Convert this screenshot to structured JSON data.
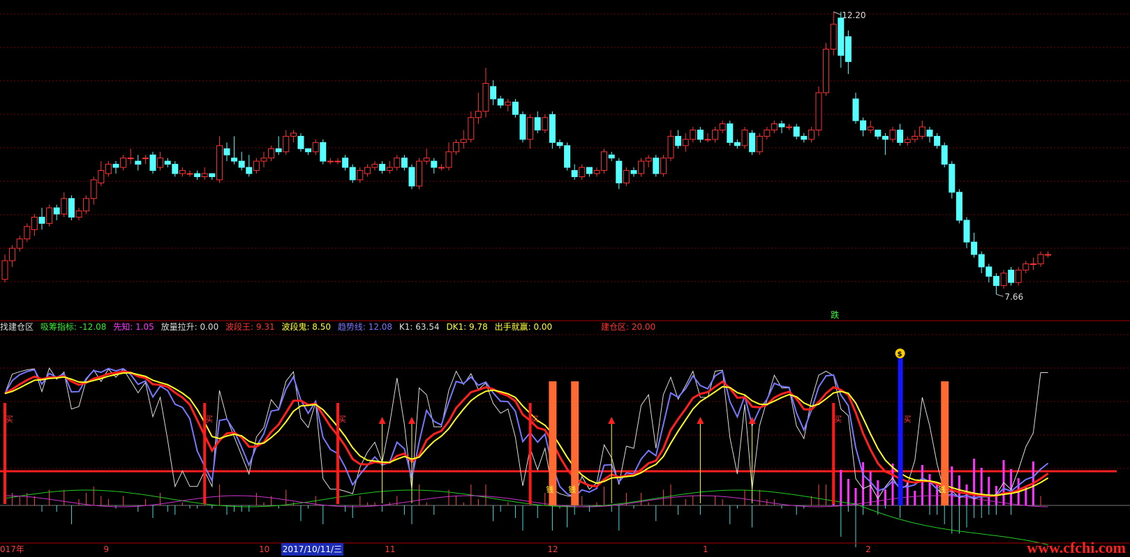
{
  "colors": {
    "background": "#000000",
    "up": "#ff3333",
    "down": "#55ffff",
    "grid": "#7a0000",
    "divider": "#aa0000"
  },
  "price_panel": {
    "high_label": "12.20",
    "low_label": "7.66",
    "signal_label": "跌",
    "candles": [
      [
        7.9,
        8.2,
        7.85,
        8.3
      ],
      [
        8.2,
        8.4,
        8.1,
        8.45
      ],
      [
        8.4,
        8.55,
        8.35,
        8.6
      ],
      [
        8.55,
        8.75,
        8.5,
        8.8
      ],
      [
        8.7,
        8.9,
        8.6,
        8.95
      ],
      [
        8.9,
        8.8,
        8.7,
        9.05
      ],
      [
        8.8,
        9.05,
        8.75,
        9.1
      ],
      [
        9.05,
        8.95,
        8.85,
        9.1
      ],
      [
        8.95,
        9.2,
        8.9,
        9.3
      ],
      [
        9.2,
        8.9,
        8.85,
        9.25
      ],
      [
        8.9,
        9.0,
        8.85,
        9.05
      ],
      [
        9.0,
        9.2,
        8.95,
        9.25
      ],
      [
        9.2,
        9.5,
        9.1,
        9.55
      ],
      [
        9.45,
        9.65,
        9.4,
        9.8
      ],
      [
        9.6,
        9.75,
        9.55,
        9.8
      ],
      [
        9.75,
        9.7,
        9.6,
        9.8
      ],
      [
        9.7,
        9.85,
        9.65,
        9.9
      ],
      [
        9.85,
        9.85,
        9.75,
        10.0
      ],
      [
        9.8,
        9.75,
        9.65,
        9.9
      ],
      [
        9.85,
        9.85,
        9.75,
        9.9
      ],
      [
        9.9,
        9.65,
        9.6,
        9.95
      ],
      [
        9.7,
        9.85,
        9.65,
        9.95
      ],
      [
        9.8,
        9.75,
        9.7,
        9.85
      ],
      [
        9.75,
        9.6,
        9.55,
        9.8
      ],
      [
        9.6,
        9.65,
        9.55,
        9.7
      ],
      [
        9.6,
        9.6,
        9.55,
        9.65
      ],
      [
        9.6,
        9.55,
        9.5,
        9.65
      ],
      [
        9.55,
        9.6,
        9.5,
        9.7
      ],
      [
        9.6,
        9.55,
        9.5,
        9.6
      ],
      [
        9.5,
        10.05,
        9.45,
        10.2
      ],
      [
        10.0,
        9.9,
        9.8,
        10.1
      ],
      [
        9.85,
        9.8,
        9.75,
        10.2
      ],
      [
        9.8,
        9.7,
        9.65,
        9.95
      ],
      [
        9.7,
        9.6,
        9.55,
        9.9
      ],
      [
        9.65,
        9.8,
        9.6,
        9.85
      ],
      [
        9.8,
        9.85,
        9.7,
        9.95
      ],
      [
        9.85,
        10.0,
        9.8,
        10.05
      ],
      [
        10.0,
        9.95,
        9.9,
        10.2
      ],
      [
        9.95,
        10.2,
        9.9,
        10.3
      ],
      [
        10.2,
        10.25,
        10.1,
        10.3
      ],
      [
        10.2,
        10.0,
        9.95,
        10.25
      ],
      [
        10.0,
        9.95,
        9.9,
        10.0
      ],
      [
        9.95,
        10.1,
        9.9,
        10.15
      ],
      [
        10.1,
        9.8,
        9.75,
        10.15
      ],
      [
        9.8,
        9.8,
        9.75,
        9.85
      ],
      [
        9.8,
        9.8,
        9.75,
        9.85
      ],
      [
        9.85,
        9.7,
        9.65,
        9.9
      ],
      [
        9.7,
        9.5,
        9.45,
        9.75
      ],
      [
        9.5,
        9.65,
        9.45,
        9.7
      ],
      [
        9.6,
        9.7,
        9.55,
        9.75
      ],
      [
        9.7,
        9.75,
        9.65,
        9.8
      ],
      [
        9.75,
        9.65,
        9.6,
        9.8
      ],
      [
        9.65,
        9.7,
        9.6,
        9.8
      ],
      [
        9.7,
        9.85,
        9.65,
        9.9
      ],
      [
        9.85,
        9.7,
        9.65,
        9.9
      ],
      [
        9.7,
        9.4,
        9.35,
        9.75
      ],
      [
        9.4,
        9.8,
        9.35,
        9.85
      ],
      [
        9.8,
        9.85,
        9.75,
        10.0
      ],
      [
        9.8,
        9.7,
        9.6,
        9.85
      ],
      [
        9.7,
        9.7,
        9.65,
        9.75
      ],
      [
        9.7,
        9.95,
        9.65,
        10.1
      ],
      [
        9.95,
        10.1,
        9.9,
        10.15
      ],
      [
        10.1,
        10.15,
        10.0,
        10.3
      ],
      [
        10.15,
        10.5,
        10.1,
        10.6
      ],
      [
        10.5,
        10.6,
        10.4,
        10.9
      ],
      [
        10.6,
        11.05,
        10.5,
        11.3
      ],
      [
        11.0,
        10.8,
        10.7,
        11.1
      ],
      [
        10.8,
        10.7,
        10.65,
        10.85
      ],
      [
        10.7,
        10.75,
        10.6,
        10.8
      ],
      [
        10.75,
        10.55,
        10.5,
        10.8
      ],
      [
        10.55,
        10.15,
        10.1,
        10.6
      ],
      [
        10.15,
        10.5,
        10.0,
        10.55
      ],
      [
        10.5,
        10.3,
        10.25,
        10.6
      ],
      [
        10.3,
        10.5,
        10.25,
        10.55
      ],
      [
        10.55,
        10.1,
        10.0,
        10.6
      ],
      [
        10.1,
        10.05,
        10.0,
        10.15
      ],
      [
        10.05,
        9.7,
        9.65,
        10.1
      ],
      [
        9.65,
        9.55,
        9.5,
        9.75
      ],
      [
        9.55,
        9.7,
        9.5,
        9.75
      ],
      [
        9.7,
        9.6,
        9.55,
        9.7
      ],
      [
        9.6,
        9.65,
        9.55,
        9.7
      ],
      [
        9.65,
        9.95,
        9.6,
        10.0
      ],
      [
        9.9,
        9.85,
        9.8,
        9.95
      ],
      [
        9.8,
        9.45,
        9.35,
        9.85
      ],
      [
        9.45,
        9.65,
        9.4,
        9.7
      ],
      [
        9.65,
        9.6,
        9.55,
        9.7
      ],
      [
        9.6,
        9.8,
        9.55,
        9.85
      ],
      [
        9.8,
        9.85,
        9.7,
        9.9
      ],
      [
        9.85,
        9.6,
        9.55,
        9.9
      ],
      [
        9.6,
        9.85,
        9.55,
        9.9
      ],
      [
        9.85,
        10.2,
        9.8,
        10.3
      ],
      [
        10.2,
        10.05,
        10.0,
        10.3
      ],
      [
        10.05,
        10.15,
        9.95,
        10.25
      ],
      [
        10.15,
        10.3,
        10.1,
        10.35
      ],
      [
        10.3,
        10.15,
        10.1,
        10.35
      ],
      [
        10.15,
        10.15,
        10.1,
        10.25
      ],
      [
        10.15,
        10.3,
        10.1,
        10.35
      ],
      [
        10.3,
        10.4,
        10.25,
        10.45
      ],
      [
        10.4,
        10.1,
        10.05,
        10.45
      ],
      [
        10.1,
        10.05,
        10.0,
        10.15
      ],
      [
        10.05,
        10.3,
        10.0,
        10.35
      ],
      [
        10.25,
        9.95,
        9.9,
        10.3
      ],
      [
        9.95,
        10.2,
        9.9,
        10.25
      ],
      [
        10.2,
        10.3,
        10.15,
        10.35
      ],
      [
        10.3,
        10.4,
        10.25,
        10.45
      ],
      [
        10.4,
        10.35,
        10.25,
        10.45
      ],
      [
        10.35,
        10.35,
        10.3,
        10.4
      ],
      [
        10.35,
        10.2,
        10.15,
        10.4
      ],
      [
        10.2,
        10.15,
        10.1,
        10.25
      ],
      [
        10.15,
        10.3,
        10.1,
        10.35
      ],
      [
        10.3,
        10.9,
        10.2,
        11.0
      ],
      [
        10.9,
        11.6,
        10.85,
        11.7
      ],
      [
        11.6,
        12.0,
        11.5,
        12.2
      ],
      [
        12.1,
        11.5,
        11.3,
        12.2
      ],
      [
        11.8,
        11.4,
        11.2,
        11.9
      ],
      [
        10.8,
        10.45,
        10.4,
        10.9
      ],
      [
        10.45,
        10.3,
        10.2,
        10.5
      ],
      [
        10.3,
        10.35,
        10.25,
        10.45
      ],
      [
        10.3,
        10.2,
        10.15,
        10.3
      ],
      [
        10.2,
        10.15,
        9.9,
        10.25
      ],
      [
        10.15,
        10.3,
        10.1,
        10.35
      ],
      [
        10.3,
        10.1,
        10.05,
        10.4
      ],
      [
        10.1,
        10.15,
        10.05,
        10.2
      ],
      [
        10.15,
        10.2,
        10.1,
        10.3
      ],
      [
        10.2,
        10.35,
        10.15,
        10.45
      ],
      [
        10.3,
        10.2,
        10.1,
        10.35
      ],
      [
        10.2,
        10.05,
        10.0,
        10.25
      ],
      [
        10.05,
        9.75,
        9.7,
        10.1
      ],
      [
        9.75,
        9.3,
        9.2,
        9.8
      ],
      [
        9.3,
        8.85,
        8.8,
        9.35
      ],
      [
        8.85,
        8.5,
        8.4,
        8.9
      ],
      [
        8.5,
        8.3,
        8.25,
        8.65
      ],
      [
        8.3,
        8.1,
        8.0,
        8.35
      ],
      [
        8.1,
        7.95,
        7.85,
        8.15
      ],
      [
        7.95,
        7.8,
        7.66,
        8.0
      ],
      [
        7.8,
        8.0,
        7.75,
        8.05
      ],
      [
        8.05,
        7.85,
        7.8,
        8.1
      ],
      [
        7.85,
        8.05,
        7.8,
        8.1
      ],
      [
        8.05,
        8.15,
        8.0,
        8.2
      ],
      [
        8.15,
        8.15,
        8.05,
        8.25
      ],
      [
        8.15,
        8.3,
        8.1,
        8.35
      ],
      [
        8.3,
        8.3,
        8.25,
        8.35
      ]
    ]
  },
  "indicator_panel": {
    "legend": [
      {
        "text": "找建仓区",
        "color": "#dddddd"
      },
      {
        "text": "吸筹指标: -12.08",
        "color": "#33ee33"
      },
      {
        "text": "先知: 1.05",
        "color": "#ff33ff"
      },
      {
        "text": "放量拉升: 0.00",
        "color": "#dddddd"
      },
      {
        "text": "波段王: 9.31",
        "color": "#ff3333"
      },
      {
        "text": "波段鬼: 8.50",
        "color": "#ffff33"
      },
      {
        "text": "趋势线: 12.08",
        "color": "#7777ff"
      },
      {
        "text": "K1: 63.54",
        "color": "#dddddd"
      },
      {
        "text": "DK1: 9.78",
        "color": "#ffff33"
      },
      {
        "text": "出手就赢: 0.00",
        "color": "#ffff33"
      },
      {
        "text": "建仓区: 20.00",
        "color": "#ff3333"
      }
    ],
    "buy_label": "买",
    "coin_label": "钱",
    "gold_label": "$",
    "buy_bar_indices": [
      0,
      27,
      45,
      71,
      112
    ],
    "arrow_indices": [
      51,
      55,
      82,
      94,
      101
    ],
    "orange_bar_indices": [
      74,
      77,
      127
    ],
    "blue_bar_index": 121
  },
  "date_axis": {
    "labels": [
      {
        "text": "017年",
        "i": 0
      },
      {
        "text": "9",
        "i": 14
      },
      {
        "text": "10",
        "i": 35
      },
      {
        "text": "2017/10/11/三",
        "i": 38,
        "highlight": true
      },
      {
        "text": "11",
        "i": 52
      },
      {
        "text": "12",
        "i": 74
      },
      {
        "text": "1",
        "i": 95
      },
      {
        "text": "2",
        "i": 117
      }
    ]
  },
  "watermark": "www.cfchi.com"
}
